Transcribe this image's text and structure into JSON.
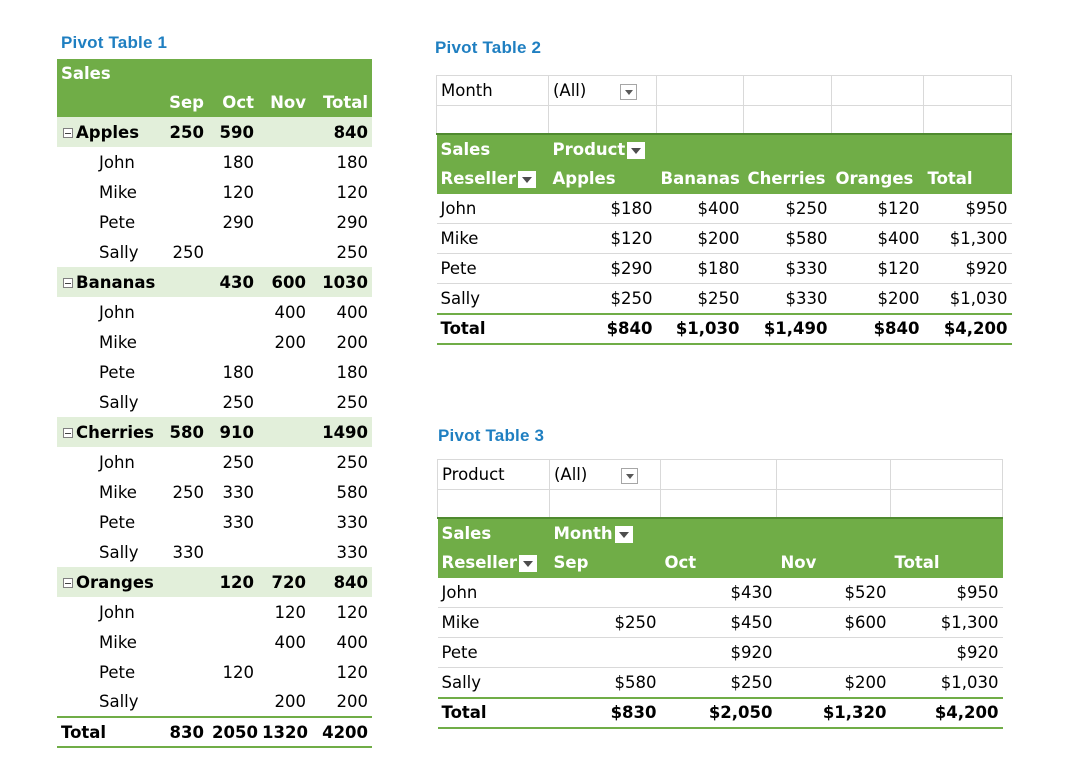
{
  "pt1": {
    "title": "Pivot Table 1",
    "header_label": "Sales",
    "columns": [
      "Sep",
      "Oct",
      "Nov",
      "Total"
    ],
    "groups": [
      {
        "name": "Apples",
        "values": [
          "250",
          "590",
          "",
          "840"
        ],
        "rows": [
          {
            "name": "John",
            "values": [
              "",
              "180",
              "",
              "180"
            ]
          },
          {
            "name": "Mike",
            "values": [
              "",
              "120",
              "",
              "120"
            ]
          },
          {
            "name": "Pete",
            "values": [
              "",
              "290",
              "",
              "290"
            ]
          },
          {
            "name": "Sally",
            "values": [
              "250",
              "",
              "",
              "250"
            ]
          }
        ]
      },
      {
        "name": "Bananas",
        "values": [
          "",
          "430",
          "600",
          "1030"
        ],
        "rows": [
          {
            "name": "John",
            "values": [
              "",
              "",
              "400",
              "400"
            ]
          },
          {
            "name": "Mike",
            "values": [
              "",
              "",
              "200",
              "200"
            ]
          },
          {
            "name": "Pete",
            "values": [
              "",
              "180",
              "",
              "180"
            ]
          },
          {
            "name": "Sally",
            "values": [
              "",
              "250",
              "",
              "250"
            ]
          }
        ]
      },
      {
        "name": "Cherries",
        "values": [
          "580",
          "910",
          "",
          "1490"
        ],
        "rows": [
          {
            "name": "John",
            "values": [
              "",
              "250",
              "",
              "250"
            ]
          },
          {
            "name": "Mike",
            "values": [
              "250",
              "330",
              "",
              "580"
            ]
          },
          {
            "name": "Pete",
            "values": [
              "",
              "330",
              "",
              "330"
            ]
          },
          {
            "name": "Sally",
            "values": [
              "330",
              "",
              "",
              "330"
            ]
          }
        ]
      },
      {
        "name": "Oranges",
        "values": [
          "",
          "120",
          "720",
          "840"
        ],
        "rows": [
          {
            "name": "John",
            "values": [
              "",
              "",
              "120",
              "120"
            ]
          },
          {
            "name": "Mike",
            "values": [
              "",
              "",
              "400",
              "400"
            ]
          },
          {
            "name": "Pete",
            "values": [
              "",
              "120",
              "",
              "120"
            ]
          },
          {
            "name": "Sally",
            "values": [
              "",
              "",
              "200",
              "200"
            ]
          }
        ]
      }
    ],
    "total": {
      "label": "Total",
      "values": [
        "830",
        "2050",
        "1320",
        "4200"
      ]
    }
  },
  "pt2": {
    "title": "Pivot Table 2",
    "filter": {
      "label": "Month",
      "value": "(All)"
    },
    "header": {
      "values_label": "Sales",
      "col_field": "Product",
      "row_field": "Reseller"
    },
    "columns": [
      "Apples",
      "Bananas",
      "Cherries",
      "Oranges",
      "Total"
    ],
    "rows": [
      {
        "name": "John",
        "values": [
          "$180",
          "$400",
          "$250",
          "$120",
          "$950"
        ]
      },
      {
        "name": "Mike",
        "values": [
          "$120",
          "$200",
          "$580",
          "$400",
          "$1,300"
        ]
      },
      {
        "name": "Pete",
        "values": [
          "$290",
          "$180",
          "$330",
          "$120",
          "$920"
        ]
      },
      {
        "name": "Sally",
        "values": [
          "$250",
          "$250",
          "$330",
          "$200",
          "$1,030"
        ]
      }
    ],
    "total": {
      "label": "Total",
      "values": [
        "$840",
        "$1,030",
        "$1,490",
        "$840",
        "$4,200"
      ]
    }
  },
  "pt3": {
    "title": "Pivot Table 3",
    "filter": {
      "label": "Product",
      "value": "(All)"
    },
    "header": {
      "values_label": "Sales",
      "col_field": "Month",
      "row_field": "Reseller"
    },
    "columns": [
      "Sep",
      "Oct",
      "Nov",
      "Total"
    ],
    "rows": [
      {
        "name": "John",
        "values": [
          "",
          "$430",
          "$520",
          "$950"
        ]
      },
      {
        "name": "Mike",
        "values": [
          "$250",
          "$450",
          "$600",
          "$1,300"
        ]
      },
      {
        "name": "Pete",
        "values": [
          "",
          "$920",
          "",
          "$920"
        ]
      },
      {
        "name": "Sally",
        "values": [
          "$580",
          "$250",
          "$200",
          "$1,030"
        ]
      }
    ],
    "total": {
      "label": "Total",
      "values": [
        "$830",
        "$2,050",
        "$1,320",
        "$4,200"
      ]
    }
  }
}
